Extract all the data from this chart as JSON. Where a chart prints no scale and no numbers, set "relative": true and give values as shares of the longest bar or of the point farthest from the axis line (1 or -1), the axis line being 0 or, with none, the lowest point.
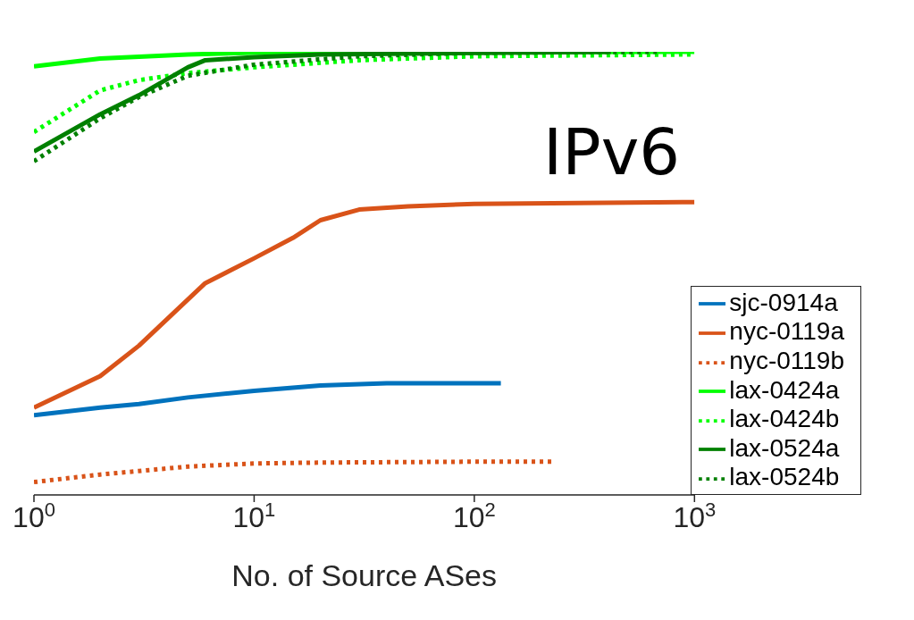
{
  "chart_data": {
    "type": "line",
    "relative": true,
    "xlabel": "No. of Source ASes",
    "annotations": [
      "IPv6"
    ],
    "log": "x",
    "xlim": [
      1,
      1000
    ],
    "xticks": [
      {
        "value": 1,
        "label": "10$^{0}$"
      },
      {
        "value": 10,
        "label": "10$^{1}$"
      },
      {
        "value": 100,
        "label": "10$^{2}$"
      },
      {
        "value": 1000,
        "label": "10$^{3}$"
      }
    ],
    "tick_labels": "x",
    "legend": "bottom right",
    "marker": "none",
    "series": [
      {
        "name": "sjc-0914a",
        "color": "#0072bd",
        "line_style": "solid",
        "x": [
          1,
          2,
          3,
          5,
          10,
          20,
          40,
          132
        ],
        "values": [
          0.18,
          0.197,
          0.205,
          0.22,
          0.235,
          0.247,
          0.252,
          0.252
        ]
      },
      {
        "name": "nyc-0119a",
        "color": "#d95319",
        "line_style": "solid",
        "x": [
          1,
          2,
          3,
          6,
          10,
          15,
          20,
          30,
          50,
          100,
          1000
        ],
        "values": [
          0.197,
          0.268,
          0.337,
          0.478,
          0.534,
          0.58,
          0.62,
          0.644,
          0.651,
          0.657,
          0.661
        ]
      },
      {
        "name": "nyc-0119b",
        "color": "#d95319",
        "line_style": "dotted",
        "x": [
          1,
          2,
          3,
          5,
          10,
          20,
          100,
          225
        ],
        "values": [
          0.029,
          0.046,
          0.054,
          0.064,
          0.071,
          0.073,
          0.075,
          0.075
        ]
      },
      {
        "name": "lax-0424a",
        "color": "#00ff00",
        "line_style": "solid",
        "x": [
          1,
          2,
          5,
          10,
          1000
        ],
        "values": [
          0.967,
          0.985,
          0.994,
          0.998,
          1
        ]
      },
      {
        "name": "lax-0424b",
        "color": "#00ff00",
        "line_style": "dotted",
        "x": [
          1,
          2,
          3,
          5,
          10,
          30,
          100,
          1000
        ],
        "values": [
          0.819,
          0.913,
          0.936,
          0.952,
          0.965,
          0.981,
          0.99,
          0.994
        ]
      },
      {
        "name": "lax-0524a",
        "color": "#008000",
        "line_style": "solid",
        "x": [
          1,
          2,
          3,
          5,
          6,
          10,
          20,
          417
        ],
        "values": [
          0.775,
          0.859,
          0.902,
          0.965,
          0.981,
          0.988,
          0.994,
          1
        ]
      },
      {
        "name": "lax-0524b",
        "color": "#008000",
        "line_style": "dotted",
        "x": [
          1,
          2,
          3,
          5,
          10,
          30,
          100,
          700
        ],
        "values": [
          0.753,
          0.85,
          0.898,
          0.946,
          0.971,
          0.99,
          0.998,
          1
        ]
      }
    ]
  }
}
